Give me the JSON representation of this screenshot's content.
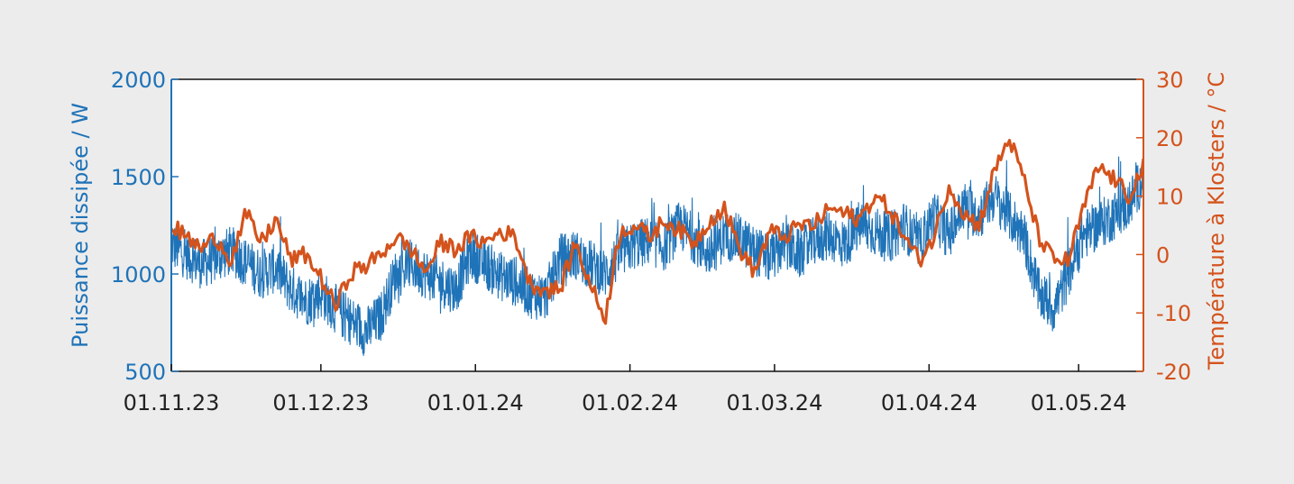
{
  "chart_data": {
    "type": "line",
    "title": "",
    "xlabel": "",
    "x_ticks": [
      "01.11.23",
      "01.12.23",
      "01.01.24",
      "01.02.24",
      "01.03.24",
      "01.04.24",
      "01.05.24"
    ],
    "x_range": [
      "2023-11-01",
      "2024-05-14"
    ],
    "y_left": {
      "label": "Puissance dissipée / W",
      "ticks": [
        "500",
        "1000",
        "1500",
        "2000"
      ],
      "range": [
        500,
        2000
      ],
      "color": "#1f73b8"
    },
    "y_right": {
      "label": "Température à Klosters / °C",
      "ticks": [
        "-20",
        "-10",
        "0",
        "10",
        "20",
        "30"
      ],
      "range": [
        -20,
        30
      ],
      "color": "#d4531c"
    },
    "grid": false,
    "series": [
      {
        "name": "",
        "axis": "left",
        "color": "#1f73b8",
        "x": [
          "2023-11-01",
          "2023-11-04",
          "2023-11-07",
          "2023-11-10",
          "2023-11-13",
          "2023-11-16",
          "2023-11-19",
          "2023-11-22",
          "2023-11-25",
          "2023-11-28",
          "2023-12-01",
          "2023-12-04",
          "2023-12-07",
          "2023-12-10",
          "2023-12-13",
          "2023-12-16",
          "2023-12-19",
          "2023-12-22",
          "2023-12-25",
          "2023-12-28",
          "2023-12-31",
          "2024-01-03",
          "2024-01-06",
          "2024-01-09",
          "2024-01-12",
          "2024-01-15",
          "2024-01-18",
          "2024-01-21",
          "2024-01-24",
          "2024-01-27",
          "2024-01-30",
          "2024-02-02",
          "2024-02-05",
          "2024-02-08",
          "2024-02-11",
          "2024-02-14",
          "2024-02-17",
          "2024-02-20",
          "2024-02-23",
          "2024-02-26",
          "2024-02-29",
          "2024-03-03",
          "2024-03-06",
          "2024-03-09",
          "2024-03-12",
          "2024-03-15",
          "2024-03-18",
          "2024-03-21",
          "2024-03-24",
          "2024-03-27",
          "2024-03-30",
          "2024-04-02",
          "2024-04-05",
          "2024-04-08",
          "2024-04-11",
          "2024-04-14",
          "2024-04-17",
          "2024-04-20",
          "2024-04-23",
          "2024-04-26",
          "2024-04-29",
          "2024-05-02",
          "2024-05-05",
          "2024-05-08",
          "2024-05-11",
          "2024-05-14"
        ],
        "values": [
          1150,
          1100,
          1050,
          1080,
          1120,
          1060,
          1000,
          1030,
          920,
          860,
          900,
          820,
          760,
          700,
          780,
          1000,
          1050,
          1000,
          960,
          920,
          1100,
          1050,
          990,
          960,
          900,
          880,
          1080,
          1100,
          1050,
          1000,
          1100,
          1150,
          1170,
          1140,
          1250,
          1180,
          1100,
          1200,
          1180,
          1120,
          1080,
          1150,
          1100,
          1170,
          1200,
          1150,
          1250,
          1220,
          1180,
          1250,
          1150,
          1300,
          1200,
          1350,
          1300,
          1400,
          1300,
          1200,
          900,
          820,
          1000,
          1200,
          1250,
          1300,
          1350,
          1500
        ],
        "spread": 130
      },
      {
        "name": "",
        "axis": "right",
        "color": "#d4531c",
        "x": [
          "2023-11-01",
          "2023-11-04",
          "2023-11-07",
          "2023-11-10",
          "2023-11-13",
          "2023-11-16",
          "2023-11-19",
          "2023-11-22",
          "2023-11-25",
          "2023-11-28",
          "2023-12-01",
          "2023-12-04",
          "2023-12-07",
          "2023-12-10",
          "2023-12-13",
          "2023-12-16",
          "2023-12-19",
          "2023-12-22",
          "2023-12-25",
          "2023-12-28",
          "2023-12-31",
          "2024-01-03",
          "2024-01-06",
          "2024-01-09",
          "2024-01-12",
          "2024-01-15",
          "2024-01-18",
          "2024-01-21",
          "2024-01-24",
          "2024-01-27",
          "2024-01-30",
          "2024-02-02",
          "2024-02-05",
          "2024-02-08",
          "2024-02-11",
          "2024-02-14",
          "2024-02-17",
          "2024-02-20",
          "2024-02-23",
          "2024-02-26",
          "2024-02-29",
          "2024-03-03",
          "2024-03-06",
          "2024-03-09",
          "2024-03-12",
          "2024-03-15",
          "2024-03-18",
          "2024-03-21",
          "2024-03-24",
          "2024-03-27",
          "2024-03-30",
          "2024-04-02",
          "2024-04-05",
          "2024-04-08",
          "2024-04-11",
          "2024-04-14",
          "2024-04-17",
          "2024-04-20",
          "2024-04-23",
          "2024-04-26",
          "2024-04-29",
          "2024-05-02",
          "2024-05-05",
          "2024-05-08",
          "2024-05-11",
          "2024-05-14"
        ],
        "values": [
          5,
          3,
          1,
          3,
          -1,
          7,
          2,
          6,
          -1,
          0,
          -4,
          -9,
          -3,
          -2,
          0,
          3,
          1,
          -3,
          2,
          1,
          3,
          2,
          4,
          3,
          -5,
          -6,
          -6,
          2,
          -5,
          -11,
          4,
          5,
          3,
          6,
          4,
          2,
          6,
          8,
          1,
          -3,
          4,
          3,
          5,
          5,
          8,
          7,
          6,
          10,
          8,
          3,
          -1,
          3,
          12,
          7,
          5,
          14,
          20,
          13,
          3,
          -1,
          -1,
          8,
          15,
          13,
          10,
          15
        ]
      }
    ]
  }
}
